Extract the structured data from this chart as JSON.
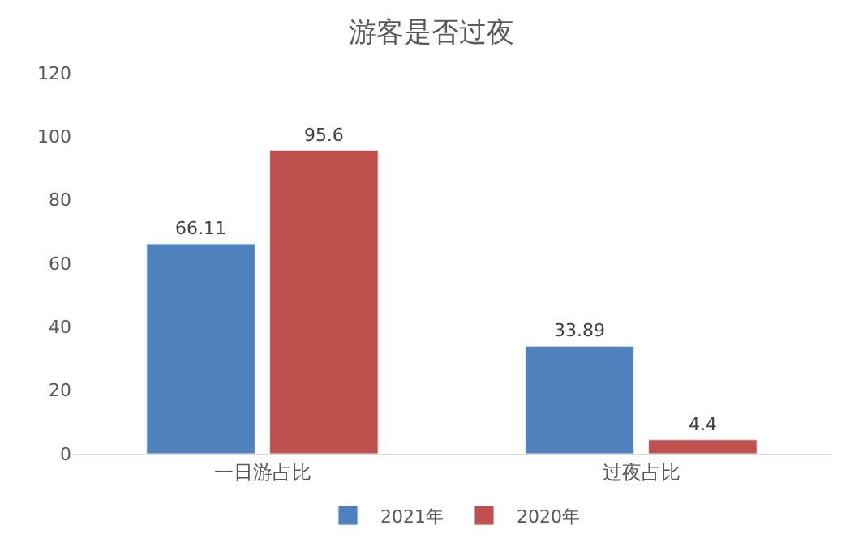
{
  "chart_data": {
    "type": "bar",
    "title": "游客是否过夜",
    "categories": [
      "一日游占比",
      "过夜占比"
    ],
    "series": [
      {
        "name": "2021年",
        "color": "#4f81bd",
        "values": [
          66.11,
          33.89
        ]
      },
      {
        "name": "2020年",
        "color": "#c0504d",
        "values": [
          95.6,
          4.4
        ]
      }
    ],
    "ylim": [
      0,
      120
    ],
    "yticks": [
      0,
      20,
      40,
      60,
      80,
      100,
      120
    ],
    "grid": false,
    "legend": "bottom",
    "data_labels": true
  }
}
